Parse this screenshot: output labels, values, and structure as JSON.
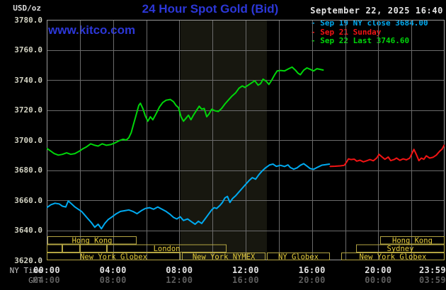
{
  "header": {
    "unit_label": "USD/oz",
    "title": "24 Hour Spot Gold (Bid)",
    "datetime": "September 22, 2025 16:40",
    "watermark": "www.kitco.com"
  },
  "legend": {
    "items": [
      {
        "marker": "-",
        "label": "Sep 19 NY close 3684.00",
        "color": "#00aaf0"
      },
      {
        "marker": "-",
        "label": "Sep 21 Sunday",
        "color": "#f21414"
      },
      {
        "marker": "-",
        "label": "Sep 22 Last 3746.60",
        "color": "#00d60a"
      }
    ]
  },
  "y_axis": {
    "ticks": [
      "3780.0",
      "3760.0",
      "3740.0",
      "3720.0",
      "3700.0",
      "3680.0",
      "3660.0",
      "3640.0",
      "3620.0"
    ]
  },
  "x_axis": {
    "rows": [
      {
        "label": "NY Time",
        "ticks": [
          "00:00",
          "04:00",
          "08:00",
          "12:00",
          "16:00",
          "20:00",
          "23:59"
        ]
      },
      {
        "label": "GMT",
        "ticks": [
          "04:00",
          "08:00",
          "12:00",
          "16:00",
          "20:00",
          "00:00",
          "03:59"
        ]
      }
    ]
  },
  "sessions": {
    "border_color": "#b3a442",
    "text_color": "#e8cf3c",
    "rows": [
      {
        "boxes": [
          {
            "label": "Hong Kong",
            "start_h": 0.05,
            "end_h": 5.42
          },
          {
            "label": "Hong Kong",
            "start_h": 20.11,
            "end_h": 24
          }
        ]
      },
      {
        "boxes": [
          {
            "label": "",
            "start_h": 0,
            "end_h": 0.94
          },
          {
            "label": "",
            "start_h": 0.94,
            "end_h": 2.0
          },
          {
            "label": "",
            "start_h": 2.0,
            "end_h": 3.63
          },
          {
            "label": "London",
            "start_h": 3.63,
            "end_h": 10.85
          },
          {
            "label": "Sydney",
            "start_h": 18.66,
            "end_h": 24
          }
        ]
      },
      {
        "boxes": [
          {
            "label": "New York Globex",
            "start_h": 0,
            "end_h": 8.07
          },
          {
            "label": "New York NYMEX",
            "start_h": 8.16,
            "end_h": 13.2
          },
          {
            "label": "NY Globex",
            "start_h": 13.28,
            "end_h": 17.08
          },
          {
            "label": "New York Globex",
            "start_h": 17.76,
            "end_h": 24
          }
        ]
      }
    ]
  },
  "chart_data": {
    "type": "line",
    "title": "24 Hour Spot Gold (Bid)",
    "x_unit": "hour_of_day_NY_time",
    "y_unit": "USD/oz",
    "xlim": [
      0,
      24
    ],
    "ylim": [
      3620,
      3780
    ],
    "y_grid_step": 20,
    "x_grid_step_hours": 2,
    "grid_color": "#6b6b6b",
    "border_color": "#9a9a9a",
    "shaded_region_hours": [
      8.07,
      13.28
    ],
    "shade_color": "#17170f",
    "series": [
      {
        "name": "Sep 19 NY close 3684.00",
        "color": "#00aaf0",
        "points": [
          [
            0.0,
            3655
          ],
          [
            0.25,
            3657
          ],
          [
            0.5,
            3658
          ],
          [
            0.75,
            3657.5
          ],
          [
            0.95,
            3656
          ],
          [
            1.15,
            3655.5
          ],
          [
            1.3,
            3659.5
          ],
          [
            1.5,
            3657.5
          ],
          [
            1.7,
            3655.5
          ],
          [
            1.9,
            3654
          ],
          [
            2.1,
            3652.5
          ],
          [
            2.3,
            3650
          ],
          [
            2.5,
            3647.5
          ],
          [
            2.7,
            3645
          ],
          [
            2.9,
            3642
          ],
          [
            3.1,
            3644
          ],
          [
            3.3,
            3641
          ],
          [
            3.5,
            3644.5
          ],
          [
            3.7,
            3647
          ],
          [
            3.95,
            3649
          ],
          [
            4.2,
            3651
          ],
          [
            4.45,
            3652.5
          ],
          [
            4.7,
            3653
          ],
          [
            4.95,
            3653.5
          ],
          [
            5.2,
            3652.5
          ],
          [
            5.45,
            3651
          ],
          [
            5.7,
            3653
          ],
          [
            5.95,
            3654.5
          ],
          [
            6.2,
            3655
          ],
          [
            6.45,
            3654
          ],
          [
            6.7,
            3655.5
          ],
          [
            6.95,
            3654
          ],
          [
            7.2,
            3652.5
          ],
          [
            7.45,
            3650.5
          ],
          [
            7.65,
            3648.5
          ],
          [
            7.85,
            3647.5
          ],
          [
            8.05,
            3649
          ],
          [
            8.25,
            3646.5
          ],
          [
            8.5,
            3647.5
          ],
          [
            8.75,
            3645.5
          ],
          [
            8.95,
            3644
          ],
          [
            9.15,
            3646
          ],
          [
            9.35,
            3644.5
          ],
          [
            9.55,
            3647.5
          ],
          [
            9.75,
            3650.5
          ],
          [
            9.95,
            3653.5
          ],
          [
            10.1,
            3655
          ],
          [
            10.25,
            3654.5
          ],
          [
            10.45,
            3656.5
          ],
          [
            10.6,
            3658.5
          ],
          [
            10.75,
            3661.5
          ],
          [
            10.9,
            3662.5
          ],
          [
            11.05,
            3658.5
          ],
          [
            11.2,
            3661
          ],
          [
            11.4,
            3663
          ],
          [
            11.6,
            3665.5
          ],
          [
            11.8,
            3668
          ],
          [
            12.0,
            3670.5
          ],
          [
            12.2,
            3673
          ],
          [
            12.4,
            3675
          ],
          [
            12.6,
            3674
          ],
          [
            12.8,
            3677
          ],
          [
            13.0,
            3679.5
          ],
          [
            13.2,
            3681.5
          ],
          [
            13.45,
            3683.5
          ],
          [
            13.65,
            3684
          ],
          [
            13.85,
            3682.5
          ],
          [
            14.1,
            3683.2
          ],
          [
            14.35,
            3682.4
          ],
          [
            14.55,
            3683.5
          ],
          [
            14.7,
            3681.7
          ],
          [
            14.9,
            3680.6
          ],
          [
            15.1,
            3681.5
          ],
          [
            15.3,
            3683.2
          ],
          [
            15.5,
            3684.3
          ],
          [
            15.7,
            3682.7
          ],
          [
            15.9,
            3681
          ],
          [
            16.1,
            3680.5
          ],
          [
            16.35,
            3682
          ],
          [
            16.6,
            3683.3
          ],
          [
            16.8,
            3683.6
          ],
          [
            17.05,
            3684.0
          ]
        ]
      },
      {
        "name": "Sep 21 Sunday",
        "color": "#f21414",
        "points": [
          [
            17.1,
            3682.5
          ],
          [
            17.4,
            3682.6
          ],
          [
            17.7,
            3682.8
          ],
          [
            17.95,
            3683.2
          ],
          [
            18.1,
            3685.5
          ],
          [
            18.2,
            3687.5
          ],
          [
            18.35,
            3687
          ],
          [
            18.55,
            3687.3
          ],
          [
            18.7,
            3686
          ],
          [
            18.9,
            3686.6
          ],
          [
            19.1,
            3685.5
          ],
          [
            19.3,
            3686.2
          ],
          [
            19.5,
            3687
          ],
          [
            19.7,
            3686.2
          ],
          [
            19.9,
            3688
          ],
          [
            20.05,
            3690.5
          ],
          [
            20.2,
            3689
          ],
          [
            20.4,
            3687.2
          ],
          [
            20.6,
            3688.7
          ],
          [
            20.75,
            3686.3
          ],
          [
            20.95,
            3687
          ],
          [
            21.1,
            3688
          ],
          [
            21.3,
            3686.5
          ],
          [
            21.5,
            3687.5
          ],
          [
            21.7,
            3686.8
          ],
          [
            21.9,
            3688
          ],
          [
            22.05,
            3691.5
          ],
          [
            22.15,
            3693.8
          ],
          [
            22.3,
            3690.3
          ],
          [
            22.45,
            3686.3
          ],
          [
            22.6,
            3688
          ],
          [
            22.75,
            3687.2
          ],
          [
            22.9,
            3689.5
          ],
          [
            23.1,
            3688
          ],
          [
            23.3,
            3688.5
          ],
          [
            23.5,
            3690
          ],
          [
            23.7,
            3692.5
          ],
          [
            23.85,
            3694
          ],
          [
            23.97,
            3696.5
          ]
        ]
      },
      {
        "name": "Sep 22 Last 3746.60",
        "color": "#00d60a",
        "points": [
          [
            0.0,
            3694.5
          ],
          [
            0.2,
            3693
          ],
          [
            0.45,
            3691
          ],
          [
            0.7,
            3690
          ],
          [
            0.95,
            3690.5
          ],
          [
            1.2,
            3691.5
          ],
          [
            1.45,
            3690.5
          ],
          [
            1.7,
            3691
          ],
          [
            1.95,
            3692.5
          ],
          [
            2.15,
            3694
          ],
          [
            2.4,
            3695.5
          ],
          [
            2.65,
            3697.5
          ],
          [
            2.9,
            3696.5
          ],
          [
            3.1,
            3696
          ],
          [
            3.35,
            3697.5
          ],
          [
            3.6,
            3696.5
          ],
          [
            3.85,
            3697
          ],
          [
            4.1,
            3698
          ],
          [
            4.35,
            3699.5
          ],
          [
            4.6,
            3700.5
          ],
          [
            4.8,
            3700
          ],
          [
            4.95,
            3701.5
          ],
          [
            5.1,
            3705
          ],
          [
            5.25,
            3711
          ],
          [
            5.4,
            3717
          ],
          [
            5.55,
            3723
          ],
          [
            5.65,
            3724.5
          ],
          [
            5.8,
            3721
          ],
          [
            5.95,
            3716
          ],
          [
            6.1,
            3712.5
          ],
          [
            6.25,
            3715.5
          ],
          [
            6.4,
            3713.5
          ],
          [
            6.6,
            3717.5
          ],
          [
            6.8,
            3722
          ],
          [
            7.0,
            3725
          ],
          [
            7.2,
            3726.5
          ],
          [
            7.45,
            3727
          ],
          [
            7.65,
            3725.5
          ],
          [
            7.8,
            3723
          ],
          [
            7.95,
            3721.5
          ],
          [
            8.1,
            3715.5
          ],
          [
            8.25,
            3712.5
          ],
          [
            8.4,
            3714.5
          ],
          [
            8.55,
            3716.5
          ],
          [
            8.7,
            3713.5
          ],
          [
            8.85,
            3716.5
          ],
          [
            9.05,
            3720
          ],
          [
            9.2,
            3722.5
          ],
          [
            9.35,
            3720.5
          ],
          [
            9.5,
            3721
          ],
          [
            9.65,
            3715.5
          ],
          [
            9.8,
            3717.5
          ],
          [
            9.95,
            3720.5
          ],
          [
            10.15,
            3719.5
          ],
          [
            10.35,
            3719
          ],
          [
            10.55,
            3721
          ],
          [
            10.75,
            3724
          ],
          [
            10.95,
            3726.5
          ],
          [
            11.15,
            3729
          ],
          [
            11.4,
            3731.5
          ],
          [
            11.6,
            3734.5
          ],
          [
            11.8,
            3736
          ],
          [
            11.95,
            3735
          ],
          [
            12.15,
            3736.5
          ],
          [
            12.35,
            3738
          ],
          [
            12.55,
            3739.5
          ],
          [
            12.75,
            3736.5
          ],
          [
            12.9,
            3737.5
          ],
          [
            13.05,
            3740.5
          ],
          [
            13.25,
            3739
          ],
          [
            13.4,
            3737
          ],
          [
            13.55,
            3739.5
          ],
          [
            13.75,
            3743.5
          ],
          [
            13.9,
            3746
          ],
          [
            14.1,
            3746.3
          ],
          [
            14.35,
            3746
          ],
          [
            14.6,
            3747.5
          ],
          [
            14.8,
            3748.5
          ],
          [
            15.0,
            3746.5
          ],
          [
            15.15,
            3744.5
          ],
          [
            15.3,
            3743.5
          ],
          [
            15.5,
            3746.5
          ],
          [
            15.7,
            3748
          ],
          [
            15.9,
            3747
          ],
          [
            16.1,
            3746
          ],
          [
            16.3,
            3747.5
          ],
          [
            16.5,
            3747
          ],
          [
            16.67,
            3746.6
          ]
        ]
      }
    ]
  }
}
